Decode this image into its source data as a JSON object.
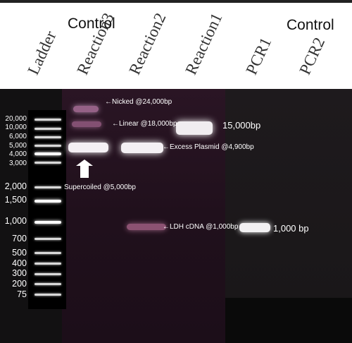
{
  "header": {
    "control_left": "Control",
    "control_right": "Control",
    "lanes": [
      "Ladder",
      "Reaction3",
      "Reaction2",
      "Reaction1",
      "PCR1",
      "PCR2"
    ]
  },
  "ladder": {
    "ticks": [
      "20,000",
      "10,000",
      "6,000",
      "5,000",
      "4,000",
      "3,000",
      "2,000",
      "1,500",
      "1,000",
      "700",
      "500",
      "400",
      "300",
      "200",
      "75"
    ]
  },
  "annotations": {
    "nicked": "←Nicked @24,000bp",
    "linear": "←Linear @18,000bp",
    "excess_plasmid": "←Excess Plasmid @4,900bp",
    "supercoiled": "Supercoiled @5,000bp",
    "ldh": "←LDH cDNA @1,000bp",
    "size_15000": "15,000bp",
    "size_1000": "1,000 bp"
  },
  "colors": {
    "gel_background": "#1a0f17",
    "band_glow": "#ffffff",
    "faint_band": "#c07aa0"
  }
}
